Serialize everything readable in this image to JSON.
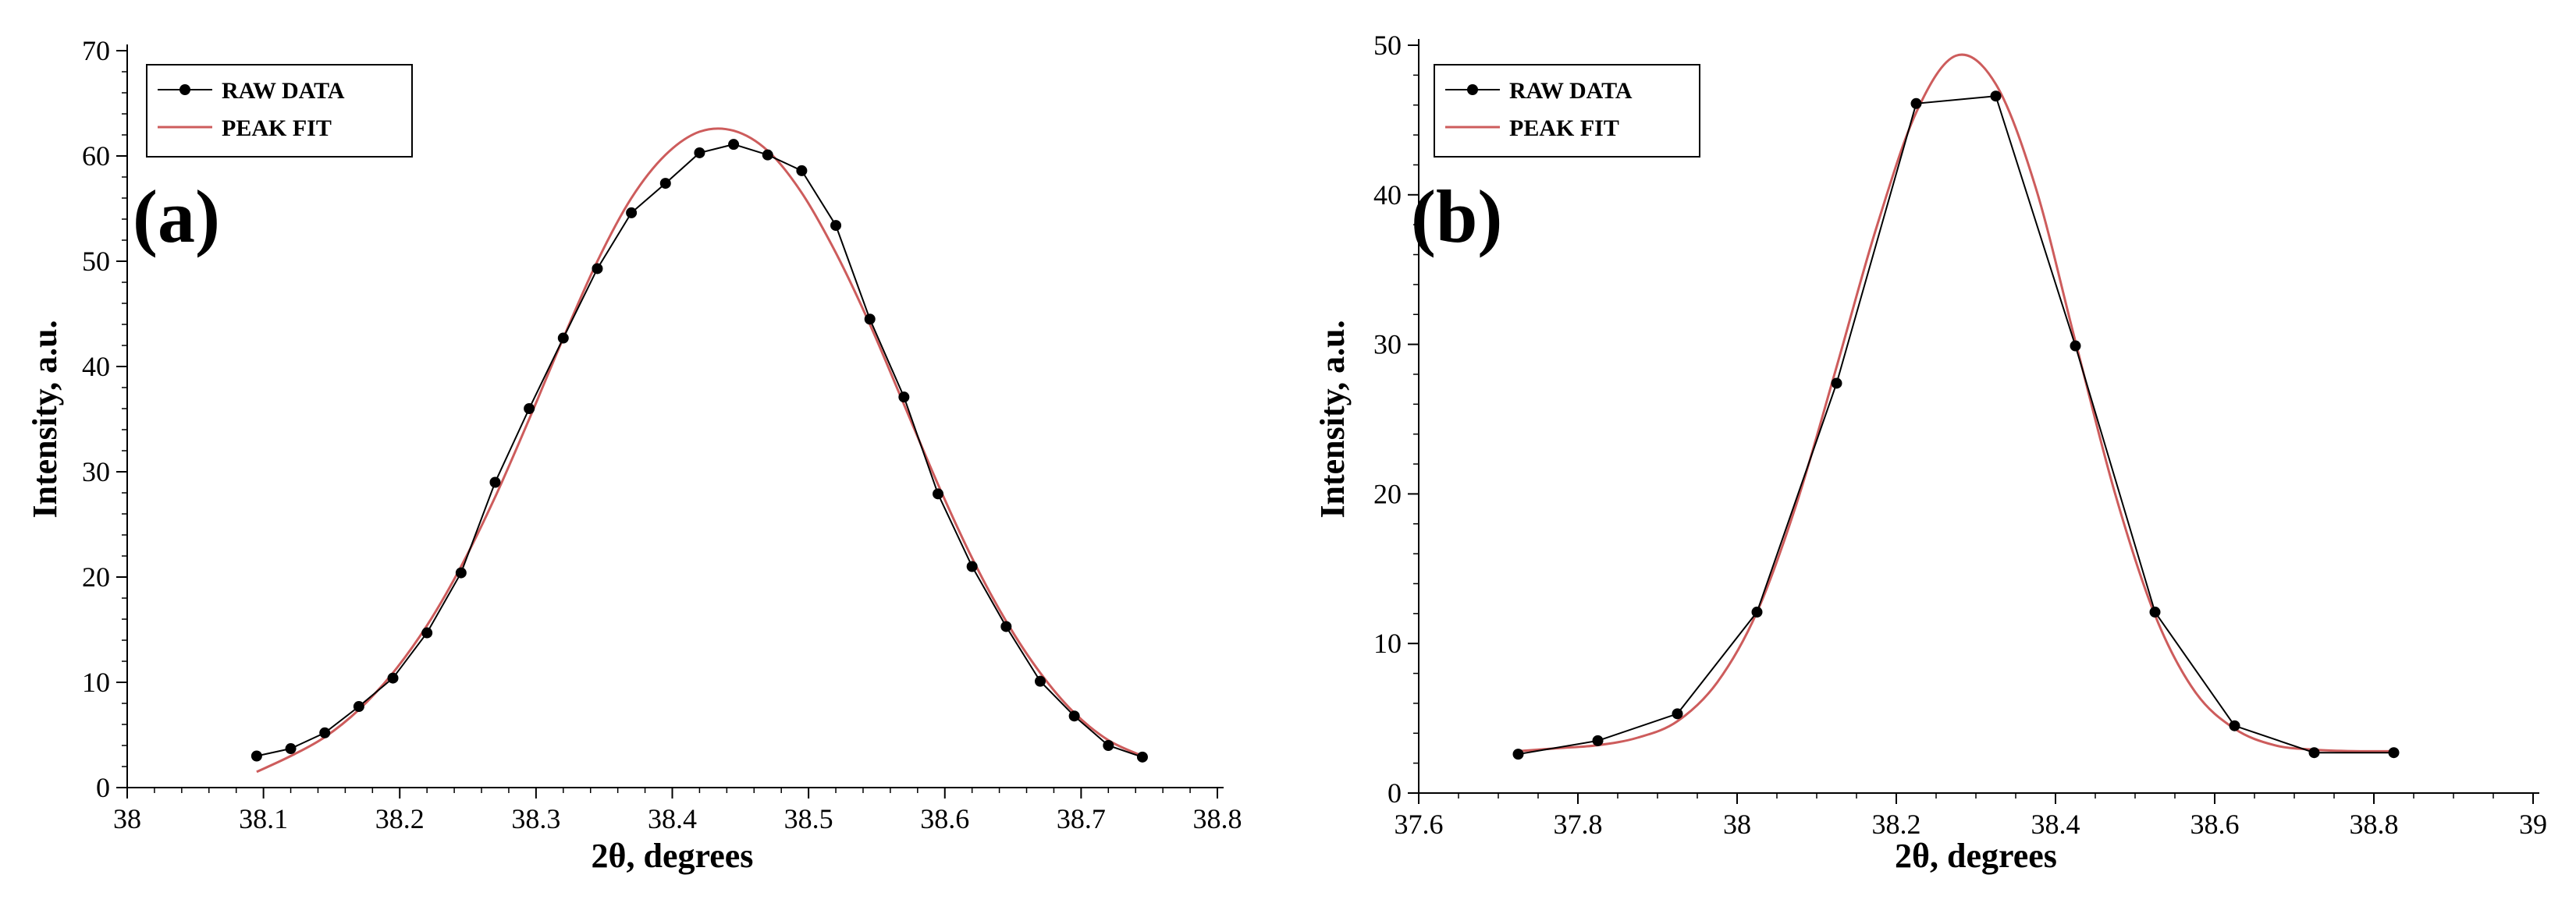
{
  "chart_data": [
    {
      "type": "line",
      "panel_label": "(a)",
      "xlabel": "2θ, degrees",
      "ylabel": "Intensity, a.u.",
      "xlim": [
        38,
        38.8
      ],
      "ylim": [
        0,
        70
      ],
      "xticks": [
        "38",
        "38.1",
        "38.2",
        "38.3",
        "38.4",
        "38.5",
        "38.6",
        "38.7",
        "38.8"
      ],
      "yticks": [
        "0",
        "10",
        "20",
        "30",
        "40",
        "50",
        "60",
        "70"
      ],
      "legend_position": "top-left",
      "series": [
        {
          "name": "RAW DATA",
          "color": "#000000",
          "markers": true,
          "x": [
            38.095,
            38.12,
            38.145,
            38.17,
            38.195,
            38.22,
            38.245,
            38.27,
            38.295,
            38.32,
            38.345,
            38.37,
            38.395,
            38.42,
            38.445,
            38.47,
            38.495,
            38.52,
            38.545,
            38.57,
            38.595,
            38.62,
            38.645,
            38.67,
            38.695,
            38.72,
            38.745
          ],
          "y": [
            3.0,
            3.7,
            5.2,
            7.7,
            10.4,
            14.7,
            20.4,
            29.0,
            36.0,
            42.7,
            49.3,
            54.6,
            57.4,
            60.3,
            61.1,
            60.1,
            58.6,
            53.4,
            44.5,
            37.1,
            27.9,
            21.0,
            15.3,
            10.1,
            6.8,
            4.0,
            2.9
          ]
        },
        {
          "name": "PEAK FIT",
          "color": "#cd5c5c",
          "markers": false,
          "x": [
            38.095,
            38.12,
            38.145,
            38.17,
            38.195,
            38.22,
            38.245,
            38.27,
            38.295,
            38.32,
            38.345,
            38.37,
            38.395,
            38.42,
            38.445,
            38.47,
            38.495,
            38.52,
            38.545,
            38.57,
            38.595,
            38.62,
            38.645,
            38.67,
            38.695,
            38.72,
            38.745
          ],
          "y": [
            1.5,
            3.0,
            4.8,
            7.4,
            10.9,
            15.4,
            21.0,
            27.6,
            35.0,
            42.7,
            50.0,
            56.0,
            60.1,
            62.3,
            62.4,
            60.5,
            56.5,
            50.8,
            44.0,
            36.4,
            28.8,
            21.8,
            15.8,
            10.9,
            7.1,
            4.5,
            3.0
          ]
        }
      ]
    },
    {
      "type": "line",
      "panel_label": "(b)",
      "xlabel": "2θ, degrees",
      "ylabel": "Intensity, a.u.",
      "xlim": [
        37.6,
        39
      ],
      "ylim": [
        0,
        50
      ],
      "xticks": [
        "37.6",
        "37.8",
        "38",
        "38.2",
        "38.4",
        "38.6",
        "38.8",
        "39"
      ],
      "yticks": [
        "0",
        "10",
        "20",
        "30",
        "40",
        "50"
      ],
      "legend_position": "top-left",
      "series": [
        {
          "name": "RAW DATA",
          "color": "#000000",
          "markers": true,
          "x": [
            37.725,
            37.825,
            37.925,
            38.025,
            38.125,
            38.225,
            38.325,
            38.425,
            38.525,
            38.625,
            38.725,
            38.825
          ],
          "y": [
            2.6,
            3.5,
            5.3,
            12.1,
            27.4,
            46.1,
            46.6,
            29.9,
            12.1,
            4.5,
            2.7,
            2.7
          ]
        },
        {
          "name": "PEAK FIT",
          "color": "#cd5c5c",
          "markers": false,
          "x": [
            37.725,
            37.775,
            37.825,
            37.875,
            37.925,
            37.975,
            38.025,
            38.075,
            38.125,
            38.175,
            38.225,
            38.275,
            38.325,
            38.375,
            38.425,
            38.475,
            38.525,
            38.575,
            38.625,
            38.675,
            38.725,
            38.775,
            38.825
          ],
          "y": [
            2.8,
            3.0,
            3.2,
            3.7,
            4.8,
            7.4,
            12.1,
            19.4,
            28.5,
            37.8,
            45.5,
            49.3,
            47.4,
            40.5,
            30.2,
            20.0,
            11.9,
            6.8,
            4.3,
            3.2,
            2.9,
            2.8,
            2.8
          ]
        }
      ]
    }
  ]
}
